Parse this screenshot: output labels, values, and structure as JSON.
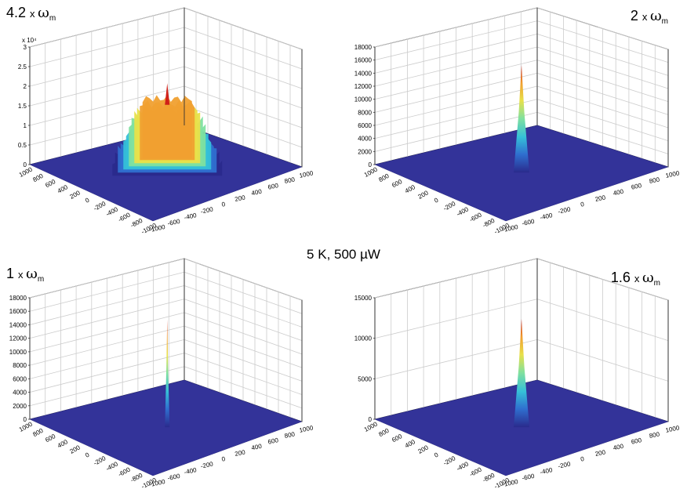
{
  "figure_label": "5 K, 500 µW",
  "chart_data": [
    {
      "type": "surface3d",
      "label": {
        "factor": "4.2",
        "times": "x",
        "symbol": "ω",
        "subscript": "m"
      },
      "z_exponent": "x 10⁴",
      "zlim": [
        0,
        30000
      ],
      "z_ticks": [
        "0",
        "0.5",
        "1",
        "1.5",
        "2",
        "2.5",
        "3"
      ],
      "x_ticks": [
        "-1000",
        "-600",
        "-400",
        "-200",
        "0",
        "200",
        "400",
        "600",
        "800",
        "1000"
      ],
      "y_ticks": [
        "1000",
        "800",
        "600",
        "400",
        "200",
        "0",
        "-200",
        "-400",
        "-600",
        "-800",
        "-1000"
      ],
      "peak": {
        "x": 0,
        "y": 0,
        "z": 22000
      },
      "spread": "broad"
    },
    {
      "type": "surface3d",
      "label": {
        "factor": "2",
        "times": "x",
        "symbol": "ω",
        "subscript": "m"
      },
      "z_exponent": "",
      "zlim": [
        0,
        18000
      ],
      "z_ticks": [
        "0",
        "2000",
        "4000",
        "6000",
        "8000",
        "10000",
        "12000",
        "14000",
        "16000",
        "18000"
      ],
      "x_ticks": [
        "-1000",
        "-600",
        "-400",
        "-200",
        "0",
        "200",
        "400",
        "600",
        "800",
        "1000"
      ],
      "y_ticks": [
        "1000",
        "800",
        "600",
        "400",
        "200",
        "0",
        "-200",
        "-400",
        "-600",
        "-800",
        "-1000"
      ],
      "peak": {
        "x": 0,
        "y": 0,
        "z": 16000
      },
      "spread": "narrow"
    },
    {
      "type": "surface3d",
      "label": {
        "factor": "1",
        "times": "x",
        "symbol": "ω",
        "subscript": "m"
      },
      "z_exponent": "",
      "zlim": [
        0,
        18000
      ],
      "z_ticks": [
        "0",
        "2000",
        "4000",
        "6000",
        "8000",
        "10000",
        "12000",
        "14000",
        "16000",
        "18000"
      ],
      "x_ticks": [
        "-1000",
        "-600",
        "-400",
        "-200",
        "0",
        "200",
        "400",
        "600",
        "800",
        "1000"
      ],
      "y_ticks": [
        "1000",
        "800",
        "600",
        "400",
        "200",
        "0",
        "-200",
        "-400",
        "-600",
        "-800",
        "-1000"
      ],
      "peak": {
        "x": 0,
        "y": 0,
        "z": 15500
      },
      "spread": "very narrow"
    },
    {
      "type": "surface3d",
      "label": {
        "factor": "1.6",
        "times": "x",
        "symbol": "ω",
        "subscript": "m"
      },
      "z_exponent": "",
      "zlim": [
        0,
        15000
      ],
      "z_ticks": [
        "0",
        "5000",
        "10000",
        "15000"
      ],
      "x_ticks": [
        "-1000",
        "-600",
        "-400",
        "-200",
        "0",
        "200",
        "400",
        "600",
        "800",
        "1000"
      ],
      "y_ticks": [
        "1000",
        "800",
        "600",
        "400",
        "200",
        "0",
        "-200",
        "-400",
        "-600",
        "-800",
        "-1000"
      ],
      "peak": {
        "x": 0,
        "y": 0,
        "z": 13000
      },
      "spread": "narrow"
    }
  ],
  "colors": {
    "floor": "#333399",
    "grid": "#cccccc",
    "colormap": [
      "#2a2a8c",
      "#2f6fcf",
      "#35c0d8",
      "#7fe0a0",
      "#e8e04a",
      "#f0a030",
      "#d02018"
    ]
  }
}
